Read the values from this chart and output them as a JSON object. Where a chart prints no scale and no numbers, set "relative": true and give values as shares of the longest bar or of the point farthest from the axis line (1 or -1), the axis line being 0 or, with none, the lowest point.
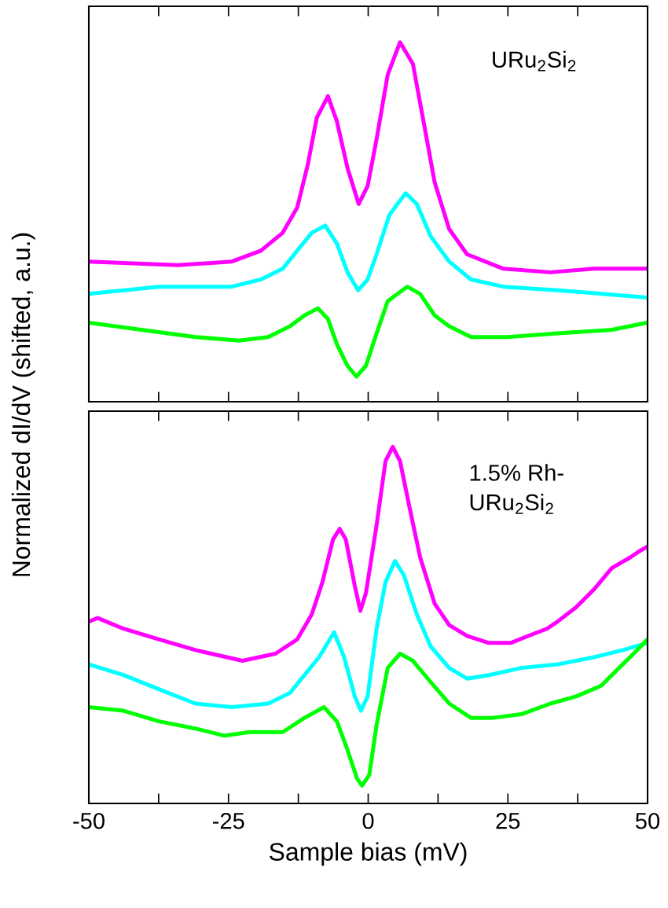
{
  "chart_data": [
    {
      "type": "line",
      "relative": true,
      "ylabel": "Normalized dI/dV (shifted, a.u.)",
      "annotations": [
        "URu$_{2}$Si$_{2}$"
      ],
      "xlim": [
        -50,
        50
      ],
      "xticks": [
        -50,
        {
          "value": -37.5,
          "label": null
        },
        -25,
        {
          "value": -12.5,
          "label": null
        },
        0,
        {
          "value": 12.5,
          "label": null
        },
        25,
        {
          "value": 37.5,
          "label": null
        },
        50
      ],
      "tick_labels": false,
      "line_style": "solid",
      "grid": false,
      "series": [
        {
          "color": "#ff00ff",
          "x": [
            -50,
            -34.1,
            -24.4,
            -19.2,
            -15.3,
            -12.7,
            -10.8,
            -9.2,
            -7.2,
            -5.6,
            -3.7,
            -1.7,
            -0.1,
            1.5,
            3.5,
            5.7,
            8.0,
            9.9,
            11.9,
            14.5,
            17.7,
            24.2,
            32.6,
            40.4,
            50
          ],
          "values": [
            0.39,
            0.38,
            0.39,
            0.42,
            0.47,
            0.54,
            0.66,
            0.79,
            0.85,
            0.78,
            0.65,
            0.55,
            0.6,
            0.73,
            0.91,
            1,
            0.94,
            0.78,
            0.61,
            0.48,
            0.41,
            0.37,
            0.36,
            0.37,
            0.37
          ]
        },
        {
          "color": "#00ffff",
          "x": [
            -50,
            -37.4,
            -24.4,
            -19.2,
            -15.3,
            -12.7,
            -10.1,
            -7.7,
            -5.6,
            -3.7,
            -1.8,
            -0.1,
            1.5,
            3.8,
            6.7,
            8.7,
            11.2,
            14.5,
            18.4,
            24.2,
            33.9,
            50
          ],
          "values": [
            0.3,
            0.32,
            0.32,
            0.34,
            0.37,
            0.42,
            0.47,
            0.49,
            0.44,
            0.36,
            0.31,
            0.34,
            0.41,
            0.52,
            0.58,
            0.55,
            0.46,
            0.39,
            0.34,
            0.32,
            0.31,
            0.29
          ]
        },
        {
          "color": "#00ff00",
          "x": [
            -50,
            -40.6,
            -30.9,
            -23.1,
            -17.9,
            -14.0,
            -11.4,
            -9.0,
            -7.2,
            -5.6,
            -3.7,
            -2.1,
            -0.4,
            1.5,
            3.5,
            7.0,
            9.3,
            11.9,
            14.5,
            18.4,
            24.9,
            33.9,
            43.6,
            50
          ],
          "values": [
            0.22,
            0.2,
            0.18,
            0.17,
            0.18,
            0.21,
            0.24,
            0.26,
            0.23,
            0.16,
            0.1,
            0.07,
            0.1,
            0.19,
            0.28,
            0.32,
            0.3,
            0.24,
            0.21,
            0.18,
            0.18,
            0.19,
            0.2,
            0.22
          ]
        }
      ]
    },
    {
      "type": "line",
      "relative": true,
      "xlabel": "Sample bias (mV)",
      "annotations": [
        "1.5% Rh-\nURu$_{2}$Si$_{2}$"
      ],
      "xlim": [
        -50,
        50
      ],
      "xticks": [
        -50,
        {
          "value": -37.5,
          "label": null
        },
        -25,
        {
          "value": -12.5,
          "label": null
        },
        0,
        {
          "value": 12.5,
          "label": null
        },
        25,
        {
          "value": 37.5,
          "label": null
        },
        50
      ],
      "tick_labels": "x",
      "line_style": "solid",
      "grid": false,
      "series": [
        {
          "color": "#ff00ff",
          "x": [
            -50,
            -48.4,
            -43.8,
            -37.4,
            -30.9,
            -22.5,
            -16.6,
            -12.7,
            -10.1,
            -8.2,
            -6.3,
            -5.1,
            -4.0,
            -2.4,
            -1.4,
            -0.4,
            1.5,
            3.1,
            4.4,
            5.7,
            7.4,
            9.3,
            11.9,
            14.5,
            17.7,
            21.6,
            25.5,
            28.7,
            32.0,
            33.9,
            37.2,
            40.4,
            43.6,
            46.9,
            48.8,
            50
          ],
          "values": [
            0.51,
            0.52,
            0.49,
            0.46,
            0.43,
            0.4,
            0.42,
            0.46,
            0.53,
            0.62,
            0.74,
            0.77,
            0.74,
            0.61,
            0.54,
            0.59,
            0.78,
            0.96,
            1,
            0.96,
            0.83,
            0.69,
            0.56,
            0.5,
            0.47,
            0.45,
            0.45,
            0.47,
            0.49,
            0.51,
            0.55,
            0.6,
            0.66,
            0.69,
            0.71,
            0.72
          ]
        },
        {
          "color": "#00ffff",
          "x": [
            -50,
            -43.8,
            -37.4,
            -30.9,
            -24.4,
            -17.9,
            -14.0,
            -11.4,
            -8.8,
            -6.1,
            -4.3,
            -2.4,
            -1.3,
            -0.1,
            1.5,
            3.1,
            4.8,
            6.4,
            8.7,
            11.2,
            14.5,
            17.7,
            21.6,
            27.4,
            33.9,
            40.4,
            45.6,
            50
          ],
          "values": [
            0.39,
            0.36,
            0.32,
            0.28,
            0.27,
            0.28,
            0.31,
            0.36,
            0.41,
            0.48,
            0.41,
            0.3,
            0.26,
            0.3,
            0.49,
            0.62,
            0.68,
            0.64,
            0.53,
            0.44,
            0.38,
            0.35,
            0.36,
            0.38,
            0.39,
            0.41,
            0.43,
            0.45
          ]
        },
        {
          "color": "#00ff00",
          "x": [
            -50,
            -43.8,
            -37.4,
            -30.9,
            -25.7,
            -21.2,
            -15.3,
            -11.4,
            -7.9,
            -5.6,
            -3.7,
            -2.0,
            -1.1,
            0.2,
            1.5,
            3.5,
            5.7,
            8.0,
            11.2,
            14.5,
            18.4,
            22.3,
            27.4,
            32.6,
            37.2,
            41.7,
            44.9,
            47.5,
            50
          ],
          "values": [
            0.27,
            0.26,
            0.23,
            0.21,
            0.19,
            0.2,
            0.2,
            0.24,
            0.27,
            0.23,
            0.15,
            0.07,
            0.05,
            0.08,
            0.22,
            0.38,
            0.42,
            0.4,
            0.34,
            0.28,
            0.24,
            0.24,
            0.25,
            0.28,
            0.3,
            0.33,
            0.38,
            0.42,
            0.46
          ]
        }
      ]
    }
  ]
}
